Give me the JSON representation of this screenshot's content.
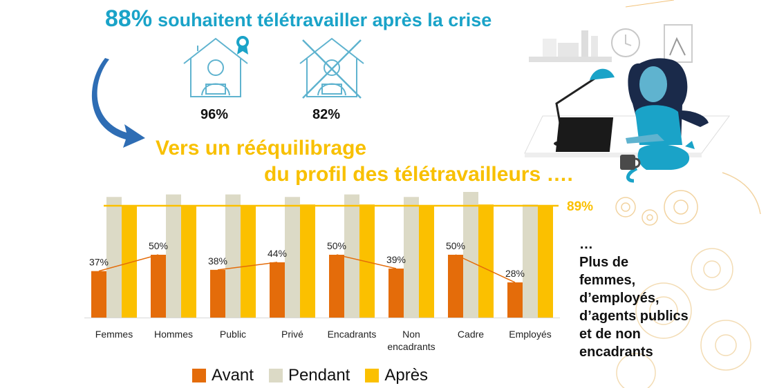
{
  "headline": {
    "pct": "88%",
    "text": "souhaitent télétravailler après la crise"
  },
  "houses": [
    {
      "pct": "96%"
    },
    {
      "pct": "82%"
    }
  ],
  "subtitle": {
    "line1": "Vers un rééquilibrage",
    "line2": "du profil des télétravailleurs …."
  },
  "side_note": {
    "line1": "…",
    "line2": "Plus de",
    "line3": "femmes,",
    "line4": "d’employés,",
    "line5": "d’agents publics",
    "line6": "et de non",
    "line7": "encadrants"
  },
  "colors": {
    "avant": "#e46c0a",
    "pendant": "#dcdac6",
    "apres": "#fbc000",
    "teal": "#1aa3c8",
    "arrow": "#2e6db4"
  },
  "chart_data": {
    "type": "bar",
    "categories": [
      [
        "Femmes"
      ],
      [
        "Hommes"
      ],
      [
        "Public"
      ],
      [
        "Privé"
      ],
      [
        "Encadrants"
      ],
      [
        "Non",
        "encadrants"
      ],
      [
        "Cadre"
      ],
      [
        "Employés"
      ]
    ],
    "series": [
      {
        "name": "Avant",
        "values": [
          37,
          50,
          38,
          44,
          50,
          39,
          50,
          28
        ]
      },
      {
        "name": "Pendant",
        "values": [
          96,
          98,
          98,
          96,
          98,
          96,
          100,
          90
        ]
      },
      {
        "name": "Après",
        "values": [
          89,
          89,
          89,
          90,
          90,
          89,
          90,
          89
        ]
      }
    ],
    "value_labels": [
      "37%",
      "50%",
      "38%",
      "44%",
      "50%",
      "39%",
      "50%",
      "28%"
    ],
    "reference_line": {
      "value": 89,
      "label": "89%"
    },
    "ylim": [
      0,
      100
    ],
    "legend": "bottom"
  }
}
